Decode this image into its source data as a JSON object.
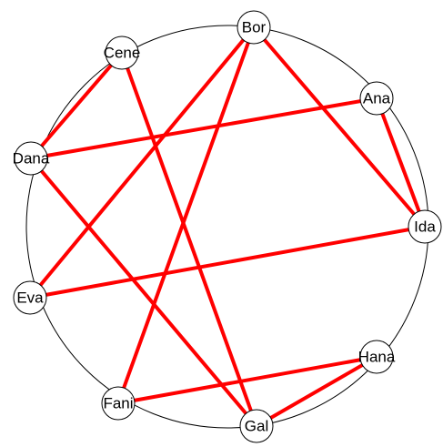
{
  "nodes": [
    {
      "label": "Bor"
    },
    {
      "label": "Cene"
    },
    {
      "label": "Ana"
    },
    {
      "label": "Dana"
    },
    {
      "label": "Ida"
    },
    {
      "label": "Eva"
    },
    {
      "label": "Hana"
    },
    {
      "label": "Fani"
    },
    {
      "label": "Gal"
    }
  ],
  "edges": [
    [
      1,
      3
    ],
    [
      1,
      8
    ],
    [
      0,
      5
    ],
    [
      0,
      7
    ],
    [
      0,
      4
    ],
    [
      2,
      3
    ],
    [
      2,
      4
    ],
    [
      3,
      8
    ],
    [
      5,
      4
    ],
    [
      6,
      7
    ],
    [
      6,
      8
    ]
  ]
}
